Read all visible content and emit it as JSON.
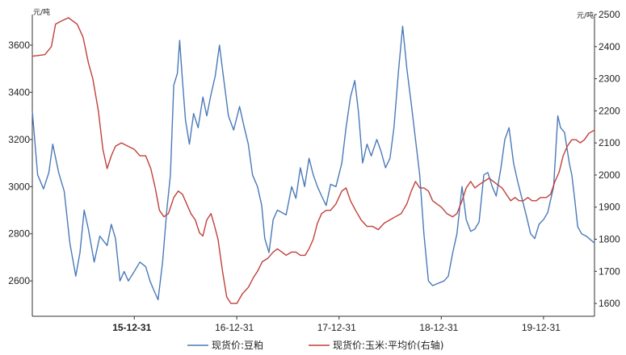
{
  "chart_data": {
    "type": "line",
    "title": "",
    "y_left": {
      "unit": "元/吨",
      "min": 2450,
      "max": 3730,
      "ticks": [
        2600,
        2800,
        3000,
        3200,
        3400,
        3600
      ]
    },
    "y_right": {
      "unit": "元/吨",
      "min": 1560,
      "max": 2500,
      "ticks": [
        1600,
        1700,
        1800,
        1900,
        2000,
        2100,
        2200,
        2300,
        2400,
        2500
      ]
    },
    "x_range": [
      "2015-01-01",
      "2020-06-30"
    ],
    "x_ticks": [
      {
        "date": "2015-12-31",
        "label": "15-12-31",
        "bold": true
      },
      {
        "date": "2016-12-31",
        "label": "16-12-31",
        "bold": false
      },
      {
        "date": "2017-12-31",
        "label": "17-12-31",
        "bold": false
      },
      {
        "date": "2018-12-31",
        "label": "18-12-31",
        "bold": false
      },
      {
        "date": "2019-12-31",
        "label": "19-12-31",
        "bold": false
      }
    ],
    "legend_position": "bottom",
    "series": [
      {
        "name": "现货价:豆粕",
        "axis": "left",
        "color": "#4a7ab8",
        "points": [
          [
            "2015-01-01",
            3320
          ],
          [
            "2015-01-20",
            3050
          ],
          [
            "2015-02-10",
            2990
          ],
          [
            "2015-03-01",
            3060
          ],
          [
            "2015-03-15",
            3180
          ],
          [
            "2015-04-05",
            3060
          ],
          [
            "2015-04-25",
            2980
          ],
          [
            "2015-05-15",
            2760
          ],
          [
            "2015-06-05",
            2620
          ],
          [
            "2015-06-20",
            2720
          ],
          [
            "2015-07-05",
            2900
          ],
          [
            "2015-07-20",
            2820
          ],
          [
            "2015-08-10",
            2680
          ],
          [
            "2015-08-30",
            2790
          ],
          [
            "2015-09-25",
            2750
          ],
          [
            "2015-10-10",
            2840
          ],
          [
            "2015-10-25",
            2780
          ],
          [
            "2015-11-10",
            2600
          ],
          [
            "2015-11-25",
            2640
          ],
          [
            "2015-12-10",
            2600
          ],
          [
            "2015-12-31",
            2640
          ],
          [
            "2016-01-20",
            2680
          ],
          [
            "2016-02-10",
            2660
          ],
          [
            "2016-02-25",
            2600
          ],
          [
            "2016-03-10",
            2560
          ],
          [
            "2016-03-25",
            2520
          ],
          [
            "2016-04-10",
            2680
          ],
          [
            "2016-04-25",
            2900
          ],
          [
            "2016-05-08",
            3050
          ],
          [
            "2016-05-20",
            3430
          ],
          [
            "2016-06-02",
            3480
          ],
          [
            "2016-06-10",
            3620
          ],
          [
            "2016-06-20",
            3450
          ],
          [
            "2016-07-01",
            3280
          ],
          [
            "2016-07-15",
            3180
          ],
          [
            "2016-07-30",
            3310
          ],
          [
            "2016-08-15",
            3250
          ],
          [
            "2016-09-01",
            3380
          ],
          [
            "2016-09-15",
            3300
          ],
          [
            "2016-09-30",
            3390
          ],
          [
            "2016-10-15",
            3470
          ],
          [
            "2016-10-30",
            3600
          ],
          [
            "2016-11-15",
            3450
          ],
          [
            "2016-12-01",
            3300
          ],
          [
            "2016-12-20",
            3240
          ],
          [
            "2017-01-10",
            3340
          ],
          [
            "2017-01-25",
            3260
          ],
          [
            "2017-02-10",
            3180
          ],
          [
            "2017-02-25",
            3050
          ],
          [
            "2017-03-15",
            3000
          ],
          [
            "2017-03-30",
            2920
          ],
          [
            "2017-04-10",
            2780
          ],
          [
            "2017-04-25",
            2720
          ],
          [
            "2017-05-10",
            2860
          ],
          [
            "2017-05-25",
            2900
          ],
          [
            "2017-06-10",
            2890
          ],
          [
            "2017-06-25",
            2880
          ],
          [
            "2017-07-15",
            3000
          ],
          [
            "2017-07-30",
            2950
          ],
          [
            "2017-08-15",
            3080
          ],
          [
            "2017-08-30",
            3000
          ],
          [
            "2017-09-15",
            3120
          ],
          [
            "2017-09-30",
            3050
          ],
          [
            "2017-10-15",
            3000
          ],
          [
            "2017-10-30",
            2960
          ],
          [
            "2017-11-15",
            2920
          ],
          [
            "2017-12-01",
            3010
          ],
          [
            "2017-12-20",
            3000
          ],
          [
            "2018-01-10",
            3100
          ],
          [
            "2018-01-25",
            3250
          ],
          [
            "2018-02-10",
            3380
          ],
          [
            "2018-02-25",
            3450
          ],
          [
            "2018-03-10",
            3320
          ],
          [
            "2018-03-25",
            3100
          ],
          [
            "2018-04-10",
            3180
          ],
          [
            "2018-04-25",
            3130
          ],
          [
            "2018-05-15",
            3200
          ],
          [
            "2018-05-30",
            3150
          ],
          [
            "2018-06-15",
            3080
          ],
          [
            "2018-07-01",
            3120
          ],
          [
            "2018-07-15",
            3250
          ],
          [
            "2018-08-01",
            3500
          ],
          [
            "2018-08-15",
            3680
          ],
          [
            "2018-08-30",
            3500
          ],
          [
            "2018-09-15",
            3350
          ],
          [
            "2018-09-30",
            3200
          ],
          [
            "2018-10-15",
            3050
          ],
          [
            "2018-10-30",
            2800
          ],
          [
            "2018-11-15",
            2600
          ],
          [
            "2018-11-30",
            2580
          ],
          [
            "2018-12-20",
            2590
          ],
          [
            "2019-01-10",
            2600
          ],
          [
            "2019-01-25",
            2620
          ],
          [
            "2019-02-10",
            2720
          ],
          [
            "2019-02-25",
            2800
          ],
          [
            "2019-03-15",
            3000
          ],
          [
            "2019-03-30",
            2860
          ],
          [
            "2019-04-15",
            2810
          ],
          [
            "2019-04-30",
            2820
          ],
          [
            "2019-05-15",
            2850
          ],
          [
            "2019-06-01",
            3050
          ],
          [
            "2019-06-15",
            3060
          ],
          [
            "2019-07-01",
            3000
          ],
          [
            "2019-07-15",
            2960
          ],
          [
            "2019-08-01",
            3080
          ],
          [
            "2019-08-15",
            3200
          ],
          [
            "2019-08-30",
            3250
          ],
          [
            "2019-09-15",
            3100
          ],
          [
            "2019-09-30",
            3020
          ],
          [
            "2019-10-15",
            2950
          ],
          [
            "2019-10-30",
            2880
          ],
          [
            "2019-11-15",
            2800
          ],
          [
            "2019-11-30",
            2780
          ],
          [
            "2019-12-15",
            2840
          ],
          [
            "2019-12-31",
            2860
          ],
          [
            "2020-01-15",
            2890
          ],
          [
            "2020-02-05",
            3000
          ],
          [
            "2020-02-20",
            3300
          ],
          [
            "2020-03-01",
            3250
          ],
          [
            "2020-03-15",
            3230
          ],
          [
            "2020-04-01",
            3100
          ],
          [
            "2020-04-10",
            3050
          ],
          [
            "2020-04-20",
            2950
          ],
          [
            "2020-05-01",
            2830
          ],
          [
            "2020-05-15",
            2800
          ],
          [
            "2020-06-01",
            2790
          ],
          [
            "2020-06-30",
            2760
          ]
        ]
      },
      {
        "name": "现货价:玉米:平均价(右轴)",
        "axis": "right",
        "color": "#c0403a",
        "points": [
          [
            "2015-01-01",
            2370
          ],
          [
            "2015-02-15",
            2375
          ],
          [
            "2015-03-10",
            2400
          ],
          [
            "2015-03-25",
            2470
          ],
          [
            "2015-04-15",
            2480
          ],
          [
            "2015-05-10",
            2490
          ],
          [
            "2015-06-10",
            2470
          ],
          [
            "2015-07-01",
            2430
          ],
          [
            "2015-07-20",
            2350
          ],
          [
            "2015-08-05",
            2300
          ],
          [
            "2015-08-25",
            2200
          ],
          [
            "2015-09-10",
            2080
          ],
          [
            "2015-09-25",
            2020
          ],
          [
            "2015-10-10",
            2060
          ],
          [
            "2015-10-25",
            2090
          ],
          [
            "2015-11-15",
            2100
          ],
          [
            "2015-12-31",
            2080
          ],
          [
            "2016-01-20",
            2060
          ],
          [
            "2016-02-10",
            2060
          ],
          [
            "2016-02-28",
            2020
          ],
          [
            "2016-03-15",
            1960
          ],
          [
            "2016-03-30",
            1890
          ],
          [
            "2016-04-15",
            1870
          ],
          [
            "2016-05-01",
            1880
          ],
          [
            "2016-05-20",
            1930
          ],
          [
            "2016-06-05",
            1950
          ],
          [
            "2016-06-20",
            1940
          ],
          [
            "2016-07-05",
            1910
          ],
          [
            "2016-07-20",
            1880
          ],
          [
            "2016-08-05",
            1860
          ],
          [
            "2016-08-20",
            1820
          ],
          [
            "2016-09-01",
            1810
          ],
          [
            "2016-09-15",
            1860
          ],
          [
            "2016-09-30",
            1880
          ],
          [
            "2016-10-10",
            1850
          ],
          [
            "2016-10-25",
            1800
          ],
          [
            "2016-11-10",
            1700
          ],
          [
            "2016-11-25",
            1620
          ],
          [
            "2016-12-10",
            1600
          ],
          [
            "2016-12-31",
            1600
          ],
          [
            "2017-01-20",
            1630
          ],
          [
            "2017-02-10",
            1650
          ],
          [
            "2017-02-28",
            1680
          ],
          [
            "2017-03-15",
            1700
          ],
          [
            "2017-04-01",
            1730
          ],
          [
            "2017-04-20",
            1740
          ],
          [
            "2017-05-10",
            1760
          ],
          [
            "2017-05-25",
            1770
          ],
          [
            "2017-06-10",
            1760
          ],
          [
            "2017-06-25",
            1750
          ],
          [
            "2017-07-15",
            1760
          ],
          [
            "2017-07-30",
            1760
          ],
          [
            "2017-08-15",
            1750
          ],
          [
            "2017-09-01",
            1750
          ],
          [
            "2017-09-15",
            1770
          ],
          [
            "2017-09-30",
            1800
          ],
          [
            "2017-10-15",
            1850
          ],
          [
            "2017-10-30",
            1880
          ],
          [
            "2017-11-15",
            1890
          ],
          [
            "2017-12-01",
            1890
          ],
          [
            "2017-12-20",
            1910
          ],
          [
            "2018-01-10",
            1950
          ],
          [
            "2018-01-25",
            1960
          ],
          [
            "2018-02-10",
            1920
          ],
          [
            "2018-02-28",
            1890
          ],
          [
            "2018-03-20",
            1860
          ],
          [
            "2018-04-10",
            1840
          ],
          [
            "2018-04-30",
            1840
          ],
          [
            "2018-05-20",
            1830
          ],
          [
            "2018-06-10",
            1850
          ],
          [
            "2018-06-30",
            1860
          ],
          [
            "2018-07-20",
            1870
          ],
          [
            "2018-08-10",
            1880
          ],
          [
            "2018-08-30",
            1910
          ],
          [
            "2018-09-15",
            1950
          ],
          [
            "2018-09-30",
            1980
          ],
          [
            "2018-10-15",
            1960
          ],
          [
            "2018-10-30",
            1960
          ],
          [
            "2018-11-15",
            1950
          ],
          [
            "2018-11-30",
            1920
          ],
          [
            "2018-12-15",
            1910
          ],
          [
            "2018-12-31",
            1900
          ],
          [
            "2019-01-20",
            1880
          ],
          [
            "2019-02-10",
            1870
          ],
          [
            "2019-02-25",
            1880
          ],
          [
            "2019-03-15",
            1920
          ],
          [
            "2019-03-30",
            1960
          ],
          [
            "2019-04-15",
            1980
          ],
          [
            "2019-04-30",
            1960
          ],
          [
            "2019-05-15",
            1970
          ],
          [
            "2019-06-01",
            1980
          ],
          [
            "2019-06-20",
            1990
          ],
          [
            "2019-07-05",
            1980
          ],
          [
            "2019-07-20",
            1970
          ],
          [
            "2019-08-05",
            1960
          ],
          [
            "2019-08-20",
            1940
          ],
          [
            "2019-09-05",
            1920
          ],
          [
            "2019-09-20",
            1930
          ],
          [
            "2019-10-05",
            1920
          ],
          [
            "2019-10-20",
            1920
          ],
          [
            "2019-11-05",
            1930
          ],
          [
            "2019-11-20",
            1920
          ],
          [
            "2019-12-05",
            1920
          ],
          [
            "2019-12-20",
            1930
          ],
          [
            "2020-01-10",
            1930
          ],
          [
            "2020-01-25",
            1940
          ],
          [
            "2020-02-10",
            1980
          ],
          [
            "2020-02-25",
            2010
          ],
          [
            "2020-03-10",
            2060
          ],
          [
            "2020-03-25",
            2090
          ],
          [
            "2020-04-10",
            2110
          ],
          [
            "2020-04-25",
            2110
          ],
          [
            "2020-05-10",
            2100
          ],
          [
            "2020-05-25",
            2110
          ],
          [
            "2020-06-10",
            2130
          ],
          [
            "2020-06-30",
            2140
          ]
        ]
      }
    ]
  }
}
